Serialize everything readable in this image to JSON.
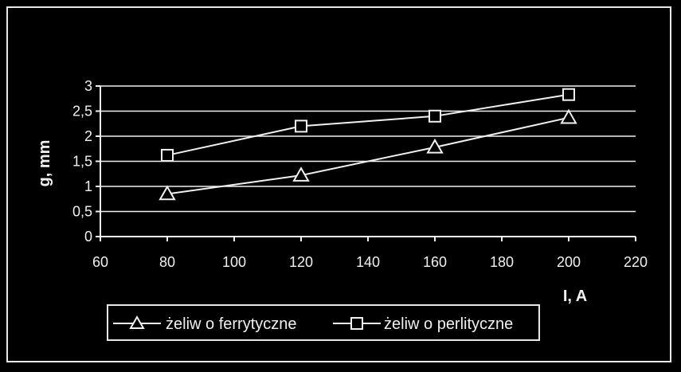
{
  "chart_data": {
    "type": "line",
    "title": "",
    "xlabel": "I, A",
    "ylabel": "g, mm",
    "xlim": [
      60,
      220
    ],
    "ylim": [
      0,
      3
    ],
    "xticks": [
      60,
      80,
      100,
      120,
      140,
      160,
      180,
      200,
      220
    ],
    "yticks": [
      "0",
      "0,5",
      "1",
      "1,5",
      "2",
      "2,5",
      "3"
    ],
    "ytick_values": [
      0,
      0.5,
      1,
      1.5,
      2,
      2.5,
      3
    ],
    "grid": "horizontal",
    "legend_position": "bottom",
    "series": [
      {
        "name": "żeliw o ferrytyczne",
        "marker": "triangle",
        "x": [
          80,
          120,
          160,
          200
        ],
        "y": [
          0.85,
          1.22,
          1.78,
          2.37
        ]
      },
      {
        "name": "żeliw o perlityczne",
        "marker": "square",
        "x": [
          80,
          120,
          160,
          200
        ],
        "y": [
          1.62,
          2.2,
          2.4,
          2.83
        ]
      }
    ],
    "colors": {
      "background": "#000000",
      "foreground": "#f0f0f0"
    }
  }
}
